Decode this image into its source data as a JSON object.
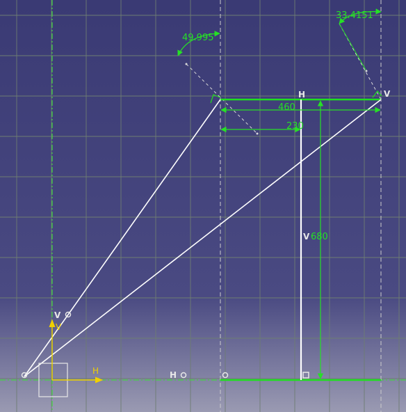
{
  "sketch": {
    "background": {
      "top_color": "#3a3a74",
      "mid_color": "#4a4a82",
      "bottom_color": "#9a9ab2"
    },
    "colors": {
      "grid": "#6e7d72",
      "axis_line": "#44d544",
      "construction": "#d8d8d8",
      "geometry_white": "#ffffff",
      "geometry_green": "#1ee01e",
      "dimension": "#26e026",
      "constraint_symbol": "#e8e8e8",
      "origin_h": "#f0d000",
      "origin_v": "#f0d000"
    },
    "origin_axis_labels": {
      "h": "H",
      "v": "V"
    },
    "dimensions": {
      "angle_left": "49.995",
      "angle_right": "33.4151",
      "width_top": "460",
      "half_width": "230",
      "height": "680"
    },
    "constraints": {
      "horizontal_top": "H",
      "vertical_right": "V",
      "vertical_left_mid": "V",
      "vertical_origin": "V",
      "horizontal_bottom": "H"
    },
    "icons": {
      "left_pivot": "coincidence-icon",
      "origin_marker": "origin-icon"
    }
  }
}
